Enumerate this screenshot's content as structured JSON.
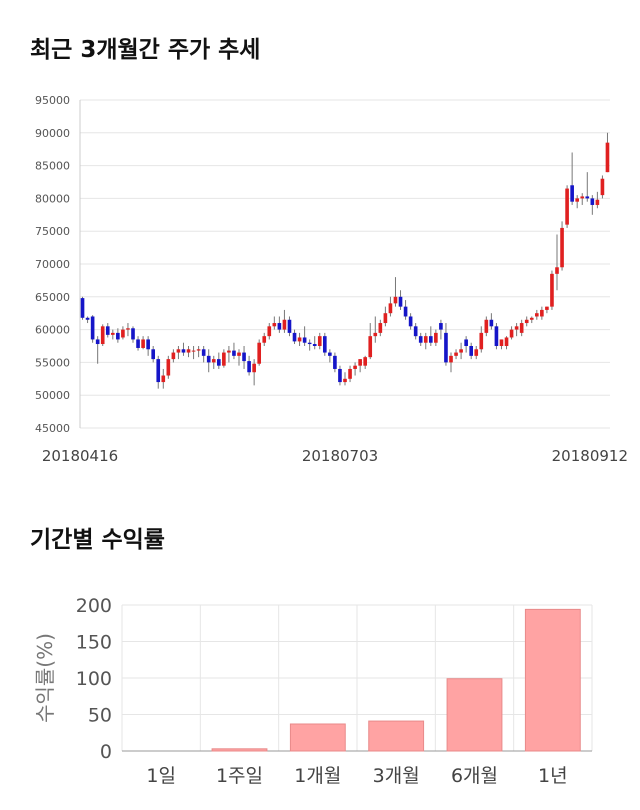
{
  "sections": {
    "candle_title": "최근 3개월간 주가 추세",
    "returns_title": "기간별 수익률"
  },
  "colors": {
    "up": "#e02020",
    "down": "#1515c8",
    "wick": "#777777",
    "bar": "#ffa3a3",
    "bar_border": "#e88a8a",
    "grid": "#e6e6e6"
  },
  "chart_data": [
    {
      "type": "candlestick",
      "title": "최근 3개월간 주가 추세",
      "ylim": [
        45000,
        95000
      ],
      "y_ticks": [
        45000,
        50000,
        55000,
        60000,
        65000,
        70000,
        75000,
        80000,
        85000,
        90000,
        95000
      ],
      "x_tick_labels": [
        "20180416",
        "20180703",
        "20180912"
      ],
      "grid": true,
      "candles": [
        {
          "o": 64800,
          "h": 65000,
          "l": 61500,
          "c": 61800
        },
        {
          "o": 61800,
          "h": 62000,
          "l": 61000,
          "c": 61500
        },
        {
          "o": 62000,
          "h": 62200,
          "l": 58000,
          "c": 58500
        },
        {
          "o": 58500,
          "h": 59000,
          "l": 54800,
          "c": 57800
        },
        {
          "o": 57800,
          "h": 60800,
          "l": 57500,
          "c": 60500
        },
        {
          "o": 60500,
          "h": 61000,
          "l": 58800,
          "c": 59200
        },
        {
          "o": 59200,
          "h": 60000,
          "l": 58500,
          "c": 59500
        },
        {
          "o": 59500,
          "h": 60200,
          "l": 58000,
          "c": 58500
        },
        {
          "o": 58800,
          "h": 60500,
          "l": 58500,
          "c": 60000
        },
        {
          "o": 60000,
          "h": 61000,
          "l": 59000,
          "c": 60200
        },
        {
          "o": 60200,
          "h": 60500,
          "l": 58000,
          "c": 58500
        },
        {
          "o": 58500,
          "h": 59000,
          "l": 56800,
          "c": 57200
        },
        {
          "o": 57200,
          "h": 59000,
          "l": 57000,
          "c": 58500
        },
        {
          "o": 58500,
          "h": 59000,
          "l": 56000,
          "c": 57000
        },
        {
          "o": 57000,
          "h": 57500,
          "l": 55000,
          "c": 55500
        },
        {
          "o": 55500,
          "h": 56000,
          "l": 51000,
          "c": 52000
        },
        {
          "o": 52000,
          "h": 54000,
          "l": 51000,
          "c": 53000
        },
        {
          "o": 53000,
          "h": 56000,
          "l": 52500,
          "c": 55500
        },
        {
          "o": 55500,
          "h": 57000,
          "l": 55000,
          "c": 56500
        },
        {
          "o": 56500,
          "h": 57500,
          "l": 55500,
          "c": 57000
        },
        {
          "o": 57000,
          "h": 58000,
          "l": 56000,
          "c": 56500
        },
        {
          "o": 56500,
          "h": 57500,
          "l": 55800,
          "c": 57000
        },
        {
          "o": 56800,
          "h": 57500,
          "l": 55500,
          "c": 56800
        },
        {
          "o": 56800,
          "h": 57500,
          "l": 55800,
          "c": 57000
        },
        {
          "o": 57000,
          "h": 57500,
          "l": 55000,
          "c": 56000
        },
        {
          "o": 56000,
          "h": 57000,
          "l": 53500,
          "c": 55000
        },
        {
          "o": 55000,
          "h": 56000,
          "l": 54000,
          "c": 55500
        },
        {
          "o": 55500,
          "h": 56500,
          "l": 54000,
          "c": 54500
        },
        {
          "o": 54500,
          "h": 57000,
          "l": 54200,
          "c": 56500
        },
        {
          "o": 56500,
          "h": 57500,
          "l": 55000,
          "c": 56800
        },
        {
          "o": 56800,
          "h": 58000,
          "l": 55500,
          "c": 56000
        },
        {
          "o": 56000,
          "h": 57000,
          "l": 54500,
          "c": 56500
        },
        {
          "o": 56500,
          "h": 57500,
          "l": 54000,
          "c": 55200
        },
        {
          "o": 55200,
          "h": 56000,
          "l": 53000,
          "c": 53500
        },
        {
          "o": 53500,
          "h": 55500,
          "l": 51500,
          "c": 54800
        },
        {
          "o": 54800,
          "h": 58500,
          "l": 54500,
          "c": 58000
        },
        {
          "o": 58000,
          "h": 59500,
          "l": 57500,
          "c": 59000
        },
        {
          "o": 59000,
          "h": 61000,
          "l": 58500,
          "c": 60500
        },
        {
          "o": 60500,
          "h": 62000,
          "l": 60000,
          "c": 61000
        },
        {
          "o": 61000,
          "h": 62000,
          "l": 59500,
          "c": 60000
        },
        {
          "o": 60000,
          "h": 63000,
          "l": 59500,
          "c": 61500
        },
        {
          "o": 61500,
          "h": 62000,
          "l": 59000,
          "c": 59500
        },
        {
          "o": 59500,
          "h": 60000,
          "l": 57800,
          "c": 58200
        },
        {
          "o": 58200,
          "h": 59500,
          "l": 57500,
          "c": 58800
        },
        {
          "o": 58800,
          "h": 60500,
          "l": 57500,
          "c": 58000
        },
        {
          "o": 58000,
          "h": 58500,
          "l": 56800,
          "c": 57800
        },
        {
          "o": 57800,
          "h": 59000,
          "l": 57000,
          "c": 57500
        },
        {
          "o": 57500,
          "h": 59500,
          "l": 57000,
          "c": 59000
        },
        {
          "o": 59000,
          "h": 59500,
          "l": 56000,
          "c": 56500
        },
        {
          "o": 56500,
          "h": 57000,
          "l": 55000,
          "c": 56000
        },
        {
          "o": 56000,
          "h": 56500,
          "l": 53500,
          "c": 54000
        },
        {
          "o": 54000,
          "h": 54500,
          "l": 51500,
          "c": 52000
        },
        {
          "o": 52000,
          "h": 53500,
          "l": 51500,
          "c": 52500
        },
        {
          "o": 52500,
          "h": 54500,
          "l": 52000,
          "c": 54000
        },
        {
          "o": 54000,
          "h": 55000,
          "l": 53000,
          "c": 54500
        },
        {
          "o": 54500,
          "h": 55500,
          "l": 53500,
          "c": 55500
        },
        {
          "o": 54500,
          "h": 56000,
          "l": 54000,
          "c": 55800
        },
        {
          "o": 55800,
          "h": 61000,
          "l": 55500,
          "c": 59000
        },
        {
          "o": 59000,
          "h": 62000,
          "l": 58000,
          "c": 59500
        },
        {
          "o": 59500,
          "h": 61500,
          "l": 59000,
          "c": 61000
        },
        {
          "o": 61000,
          "h": 63500,
          "l": 60500,
          "c": 62500
        },
        {
          "o": 62500,
          "h": 65000,
          "l": 62000,
          "c": 64000
        },
        {
          "o": 64000,
          "h": 68000,
          "l": 63500,
          "c": 65000
        },
        {
          "o": 65000,
          "h": 66000,
          "l": 63000,
          "c": 63500
        },
        {
          "o": 63500,
          "h": 64500,
          "l": 61500,
          "c": 62000
        },
        {
          "o": 62000,
          "h": 62500,
          "l": 60000,
          "c": 60500
        },
        {
          "o": 60500,
          "h": 61000,
          "l": 58500,
          "c": 59000
        },
        {
          "o": 59000,
          "h": 59500,
          "l": 57500,
          "c": 58000
        },
        {
          "o": 58000,
          "h": 59500,
          "l": 57000,
          "c": 59000
        },
        {
          "o": 59000,
          "h": 60500,
          "l": 57500,
          "c": 58000
        },
        {
          "o": 58000,
          "h": 60000,
          "l": 57500,
          "c": 59500
        },
        {
          "o": 61000,
          "h": 61500,
          "l": 58500,
          "c": 60000
        },
        {
          "o": 59500,
          "h": 61000,
          "l": 54500,
          "c": 55000
        },
        {
          "o": 55000,
          "h": 56500,
          "l": 53500,
          "c": 56000
        },
        {
          "o": 56000,
          "h": 57000,
          "l": 55500,
          "c": 56500
        },
        {
          "o": 56500,
          "h": 58000,
          "l": 55500,
          "c": 57000
        },
        {
          "o": 58500,
          "h": 59000,
          "l": 56500,
          "c": 57500
        },
        {
          "o": 57500,
          "h": 58000,
          "l": 55500,
          "c": 56000
        },
        {
          "o": 56000,
          "h": 57500,
          "l": 55500,
          "c": 57000
        },
        {
          "o": 57000,
          "h": 60500,
          "l": 56500,
          "c": 59500
        },
        {
          "o": 59500,
          "h": 62000,
          "l": 59000,
          "c": 61500
        },
        {
          "o": 61500,
          "h": 62500,
          "l": 60000,
          "c": 60500
        },
        {
          "o": 60500,
          "h": 61000,
          "l": 57000,
          "c": 57500
        },
        {
          "o": 57500,
          "h": 58500,
          "l": 57000,
          "c": 58500
        },
        {
          "o": 57500,
          "h": 59000,
          "l": 57000,
          "c": 58800
        },
        {
          "o": 58800,
          "h": 60500,
          "l": 58500,
          "c": 60000
        },
        {
          "o": 60000,
          "h": 61000,
          "l": 59000,
          "c": 60500
        },
        {
          "o": 59500,
          "h": 61500,
          "l": 59000,
          "c": 61000
        },
        {
          "o": 61000,
          "h": 62000,
          "l": 60500,
          "c": 61500
        },
        {
          "o": 61500,
          "h": 62000,
          "l": 61000,
          "c": 61800
        },
        {
          "o": 62000,
          "h": 63000,
          "l": 61500,
          "c": 62500
        },
        {
          "o": 62000,
          "h": 63500,
          "l": 61500,
          "c": 63000
        },
        {
          "o": 63000,
          "h": 63500,
          "l": 62500,
          "c": 63500
        },
        {
          "o": 63500,
          "h": 69000,
          "l": 63000,
          "c": 68500
        },
        {
          "o": 68500,
          "h": 74500,
          "l": 66000,
          "c": 69500
        },
        {
          "o": 69500,
          "h": 76500,
          "l": 69000,
          "c": 75500
        },
        {
          "o": 76000,
          "h": 82000,
          "l": 75500,
          "c": 81500
        },
        {
          "o": 82000,
          "h": 87000,
          "l": 79000,
          "c": 79500
        },
        {
          "o": 79500,
          "h": 80500,
          "l": 78500,
          "c": 80000
        },
        {
          "o": 80000,
          "h": 80800,
          "l": 79000,
          "c": 80300
        },
        {
          "o": 80300,
          "h": 84000,
          "l": 79500,
          "c": 80000
        },
        {
          "o": 80000,
          "h": 80500,
          "l": 77500,
          "c": 79000
        },
        {
          "o": 79000,
          "h": 81000,
          "l": 78500,
          "c": 79800
        },
        {
          "o": 80500,
          "h": 83500,
          "l": 80000,
          "c": 83000
        },
        {
          "o": 84000,
          "h": 90000,
          "l": 84000,
          "c": 88500
        }
      ]
    },
    {
      "type": "bar",
      "title": "기간별 수익률",
      "ylabel": "수익률(%)",
      "categories": [
        "1일",
        "1주일",
        "1개월",
        "3개월",
        "6개월",
        "1년"
      ],
      "values": [
        0,
        3,
        37,
        41,
        99,
        194
      ],
      "ylim": [
        0,
        200
      ],
      "y_ticks": [
        0,
        50,
        100,
        150,
        200
      ],
      "grid": true
    }
  ]
}
